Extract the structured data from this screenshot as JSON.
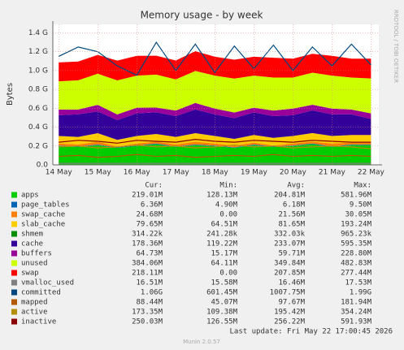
{
  "chart_data": {
    "type": "area",
    "title": "Memory usage - by week",
    "ylabel": "Bytes",
    "side_text": "RRDTOOL / TOBI OETIKER",
    "footer": "Last update: Fri May 22 17:00:45 2026",
    "version": "Munin 2.0.57",
    "stat_headers": [
      "Cur:",
      "Min:",
      "Avg:",
      "Max:"
    ],
    "grid": true,
    "xlim": [
      13.85,
      22.2
    ],
    "ylim": [
      0,
      1.49
    ],
    "xticks": [
      {
        "value": 14,
        "label": "14 May"
      },
      {
        "value": 15,
        "label": "15 May"
      },
      {
        "value": 16,
        "label": "16 May"
      },
      {
        "value": 17,
        "label": "17 May"
      },
      {
        "value": 18,
        "label": "18 May"
      },
      {
        "value": 19,
        "label": "19 May"
      },
      {
        "value": 20,
        "label": "20 May"
      },
      {
        "value": 21,
        "label": "21 May"
      },
      {
        "value": 22,
        "label": "22 May"
      }
    ],
    "yticks": [
      {
        "value": 0,
        "label": "0.0"
      },
      {
        "value": 0.2,
        "label": "0.2 G"
      },
      {
        "value": 0.4,
        "label": "0.4 G"
      },
      {
        "value": 0.6,
        "label": "0.6 G"
      },
      {
        "value": 0.8,
        "label": "0.8 G"
      },
      {
        "value": 1.0,
        "label": "1.0 G"
      },
      {
        "value": 1.2,
        "label": "1.2 G"
      },
      {
        "value": 1.4,
        "label": "1.4 G"
      }
    ],
    "x": [
      14,
      14.5,
      15,
      15.5,
      16,
      16.5,
      17,
      17.5,
      18,
      18.5,
      19,
      19.5,
      20,
      20.5,
      21,
      21.5,
      22
    ],
    "series": [
      {
        "name": "apps",
        "color": "#00cc00",
        "stacked": true,
        "stats": [
          "219.01M",
          "128.13M",
          "204.81M",
          "581.96M"
        ],
        "values": [
          0.2,
          0.19,
          0.21,
          0.18,
          0.2,
          0.22,
          0.19,
          0.21,
          0.2,
          0.18,
          0.21,
          0.19,
          0.2,
          0.22,
          0.19,
          0.21,
          0.21
        ]
      },
      {
        "name": "page_tables",
        "color": "#0066b3",
        "stacked": true,
        "stats": [
          "6.36M",
          "4.90M",
          "6.18M",
          "9.50M"
        ],
        "values": [
          0.006,
          0.006,
          0.006,
          0.005,
          0.006,
          0.007,
          0.006,
          0.006,
          0.006,
          0.005,
          0.006,
          0.006,
          0.006,
          0.007,
          0.006,
          0.006,
          0.006
        ]
      },
      {
        "name": "swap_cache",
        "color": "#ff8000",
        "stacked": true,
        "stats": [
          "24.68M",
          "0.00",
          "21.56M",
          "30.05M"
        ],
        "values": [
          0.02,
          0.02,
          0.03,
          0.01,
          0.02,
          0.02,
          0.02,
          0.03,
          0.02,
          0.02,
          0.02,
          0.01,
          0.02,
          0.02,
          0.03,
          0.02,
          0.02
        ]
      },
      {
        "name": "slab_cache",
        "color": "#ffcc00",
        "stacked": true,
        "stats": [
          "79.65M",
          "64.51M",
          "81.65M",
          "193.24M"
        ],
        "values": [
          0.08,
          0.08,
          0.09,
          0.07,
          0.08,
          0.08,
          0.08,
          0.09,
          0.08,
          0.07,
          0.08,
          0.08,
          0.08,
          0.09,
          0.08,
          0.08,
          0.08
        ]
      },
      {
        "name": "shmem",
        "color": "#008f00",
        "stacked": true,
        "stats": [
          "314.22k",
          "241.28k",
          "332.03k",
          "965.23k"
        ],
        "values": [
          0.0003,
          0.0003,
          0.0003,
          0.0003,
          0.0003,
          0.0003,
          0.0003,
          0.0003,
          0.0003,
          0.0003,
          0.0003,
          0.0003,
          0.0003,
          0.0003,
          0.0003,
          0.0003,
          0.0003
        ]
      },
      {
        "name": "cache",
        "color": "#330099",
        "stacked": true,
        "stats": [
          "178.36M",
          "119.22M",
          "233.07M",
          "595.35M"
        ],
        "values": [
          0.22,
          0.24,
          0.23,
          0.21,
          0.24,
          0.23,
          0.22,
          0.25,
          0.23,
          0.22,
          0.24,
          0.23,
          0.22,
          0.24,
          0.23,
          0.22,
          0.17
        ]
      },
      {
        "name": "buffers",
        "color": "#990099",
        "stacked": true,
        "stats": [
          "64.73M",
          "15.17M",
          "59.71M",
          "228.80M"
        ],
        "values": [
          0.06,
          0.05,
          0.07,
          0.06,
          0.06,
          0.05,
          0.06,
          0.07,
          0.06,
          0.06,
          0.05,
          0.06,
          0.07,
          0.06,
          0.06,
          0.05,
          0.06
        ]
      },
      {
        "name": "unused",
        "color": "#ccff00",
        "stacked": true,
        "stats": [
          "384.06M",
          "64.11M",
          "349.84M",
          "482.83M"
        ],
        "values": [
          0.3,
          0.31,
          0.33,
          0.36,
          0.34,
          0.35,
          0.33,
          0.34,
          0.35,
          0.36,
          0.34,
          0.35,
          0.33,
          0.34,
          0.35,
          0.34,
          0.37
        ]
      },
      {
        "name": "swap",
        "color": "#ff0000",
        "stacked": true,
        "stats": [
          "218.11M",
          "0.00",
          "207.85M",
          "277.44M"
        ],
        "values": [
          0.2,
          0.2,
          0.2,
          0.21,
          0.21,
          0.2,
          0.2,
          0.21,
          0.2,
          0.2,
          0.2,
          0.21,
          0.2,
          0.2,
          0.21,
          0.2,
          0.21
        ]
      },
      {
        "name": "vmalloc_used",
        "color": "#808080",
        "stacked": false,
        "stats": [
          "16.51M",
          "15.58M",
          "16.46M",
          "17.53M"
        ],
        "values": [
          0.016,
          0.016,
          0.016,
          0.016,
          0.016,
          0.016,
          0.016,
          0.016,
          0.016,
          0.016,
          0.016,
          0.016,
          0.016,
          0.016,
          0.016,
          0.016,
          0.016
        ]
      },
      {
        "name": "committed",
        "color": "#00487d",
        "stacked": false,
        "stats": [
          "1.06G",
          "601.45M",
          "1007.75M",
          "1.99G"
        ],
        "values": [
          1.15,
          1.25,
          1.2,
          1.05,
          0.95,
          1.3,
          1.0,
          1.28,
          0.98,
          1.26,
          1.02,
          1.27,
          1.0,
          1.25,
          1.05,
          1.28,
          1.06
        ]
      },
      {
        "name": "mapped",
        "color": "#b35a00",
        "stacked": false,
        "stats": [
          "88.44M",
          "45.07M",
          "97.67M",
          "181.94M"
        ],
        "values": [
          0.09,
          0.1,
          0.08,
          0.09,
          0.11,
          0.09,
          0.1,
          0.08,
          0.09,
          0.1,
          0.09,
          0.11,
          0.09,
          0.1,
          0.09,
          0.1,
          0.09
        ]
      },
      {
        "name": "active",
        "color": "#b38f00",
        "stacked": false,
        "stats": [
          "173.35M",
          "109.38M",
          "195.42M",
          "354.24M"
        ],
        "values": [
          0.19,
          0.2,
          0.18,
          0.19,
          0.21,
          0.19,
          0.2,
          0.18,
          0.19,
          0.21,
          0.19,
          0.2,
          0.18,
          0.19,
          0.2,
          0.19,
          0.17
        ]
      },
      {
        "name": "inactive",
        "color": "#8b0000",
        "stacked": false,
        "stats": [
          "250.03M",
          "126.55M",
          "256.22M",
          "591.93M"
        ],
        "values": [
          0.24,
          0.26,
          0.25,
          0.23,
          0.26,
          0.25,
          0.24,
          0.27,
          0.25,
          0.24,
          0.26,
          0.25,
          0.24,
          0.26,
          0.25,
          0.24,
          0.24
        ]
      }
    ]
  }
}
